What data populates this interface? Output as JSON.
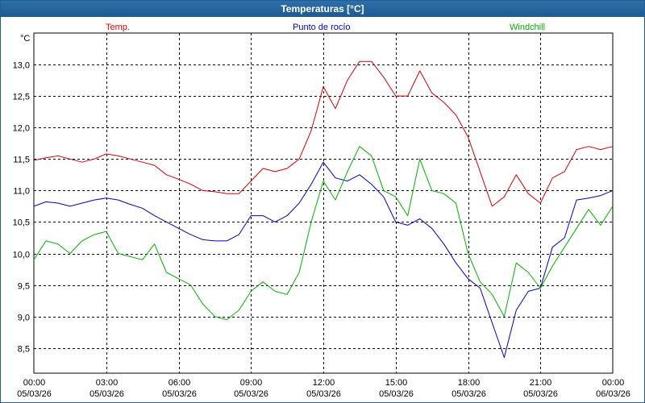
{
  "window": {
    "title": "Temperaturas [°C]"
  },
  "colors": {
    "temp": "#e00000",
    "dew": "#0000c8",
    "windchill": "#00b400",
    "grid": "#000000"
  },
  "chart_data": {
    "type": "line",
    "title": "Temperaturas [°C]",
    "ylabel": "°C",
    "ylim": [
      8.1,
      13.5
    ],
    "xlim": [
      "05/03/26 00:00",
      "06/03/26 00:00"
    ],
    "grid": true,
    "legend_placement": "top",
    "y_ticks": [
      "13,0",
      "12,5",
      "12,0",
      "11,5",
      "11,0",
      "10,5",
      "10,0",
      "9,5",
      "9,0",
      "8,5"
    ],
    "y_tick_values": [
      13.0,
      12.5,
      12.0,
      11.5,
      11.0,
      10.5,
      10.0,
      9.5,
      9.0,
      8.5
    ],
    "x_ticks": [
      {
        "hour": 0,
        "time": "00:00",
        "date": "05/03/26"
      },
      {
        "hour": 3,
        "time": "03:00",
        "date": "05/03/26"
      },
      {
        "hour": 6,
        "time": "06:00",
        "date": "05/03/26"
      },
      {
        "hour": 9,
        "time": "09:00",
        "date": "05/03/26"
      },
      {
        "hour": 12,
        "time": "12:00",
        "date": "05/03/26"
      },
      {
        "hour": 15,
        "time": "15:00",
        "date": "05/03/26"
      },
      {
        "hour": 18,
        "time": "18:00",
        "date": "05/03/26"
      },
      {
        "hour": 21,
        "time": "21:00",
        "date": "05/03/26"
      },
      {
        "hour": 24,
        "time": "00:00",
        "date": "06/03/26"
      }
    ],
    "x_hours": [
      0,
      0.5,
      1,
      1.5,
      2,
      2.5,
      3,
      3.5,
      4,
      4.5,
      5,
      5.5,
      6,
      6.5,
      7,
      7.5,
      8,
      8.5,
      9,
      9.5,
      10,
      10.5,
      11,
      11.5,
      12,
      12.5,
      13,
      13.5,
      14,
      14.5,
      15,
      15.5,
      16,
      16.5,
      17,
      17.5,
      18,
      18.5,
      19,
      19.5,
      20,
      20.5,
      21,
      21.5,
      22,
      22.5,
      23,
      23.5,
      24
    ],
    "series": [
      {
        "name": "Temp.",
        "key": "temp",
        "values": [
          11.48,
          11.52,
          11.55,
          11.5,
          11.45,
          11.5,
          11.58,
          11.55,
          11.5,
          11.45,
          11.4,
          11.25,
          11.18,
          11.1,
          11.0,
          10.98,
          10.95,
          10.95,
          11.15,
          11.35,
          11.3,
          11.35,
          11.5,
          11.95,
          12.65,
          12.3,
          12.75,
          13.05,
          13.05,
          12.8,
          12.5,
          12.5,
          12.9,
          12.55,
          12.4,
          12.2,
          11.85,
          11.3,
          10.75,
          10.9,
          11.25,
          10.95,
          10.8,
          11.2,
          11.3,
          11.65,
          11.7,
          11.65,
          11.7
        ]
      },
      {
        "name": "Punto de rocío",
        "key": "dew",
        "values": [
          10.75,
          10.82,
          10.8,
          10.75,
          10.8,
          10.85,
          10.88,
          10.85,
          10.78,
          10.72,
          10.6,
          10.5,
          10.4,
          10.3,
          10.22,
          10.2,
          10.2,
          10.3,
          10.6,
          10.6,
          10.5,
          10.6,
          10.8,
          11.1,
          11.45,
          11.2,
          11.15,
          11.25,
          11.1,
          10.9,
          10.5,
          10.45,
          10.55,
          10.4,
          10.15,
          9.85,
          9.6,
          9.45,
          8.9,
          8.35,
          9.1,
          9.4,
          9.45,
          10.1,
          10.25,
          10.85,
          10.88,
          10.92,
          11.0
        ]
      },
      {
        "name": "Windchill",
        "key": "windchill",
        "values": [
          9.9,
          10.2,
          10.15,
          10.0,
          10.2,
          10.3,
          10.35,
          10.0,
          9.95,
          9.9,
          10.15,
          9.7,
          9.6,
          9.5,
          9.2,
          9.0,
          8.95,
          9.1,
          9.4,
          9.55,
          9.4,
          9.35,
          9.7,
          10.5,
          11.15,
          10.85,
          11.3,
          11.7,
          11.55,
          11.0,
          10.9,
          10.6,
          11.5,
          11.0,
          10.95,
          10.8,
          10.0,
          9.55,
          9.35,
          9.0,
          9.85,
          9.7,
          9.45,
          9.8,
          10.1,
          10.4,
          10.7,
          10.45,
          10.75
        ]
      }
    ]
  }
}
